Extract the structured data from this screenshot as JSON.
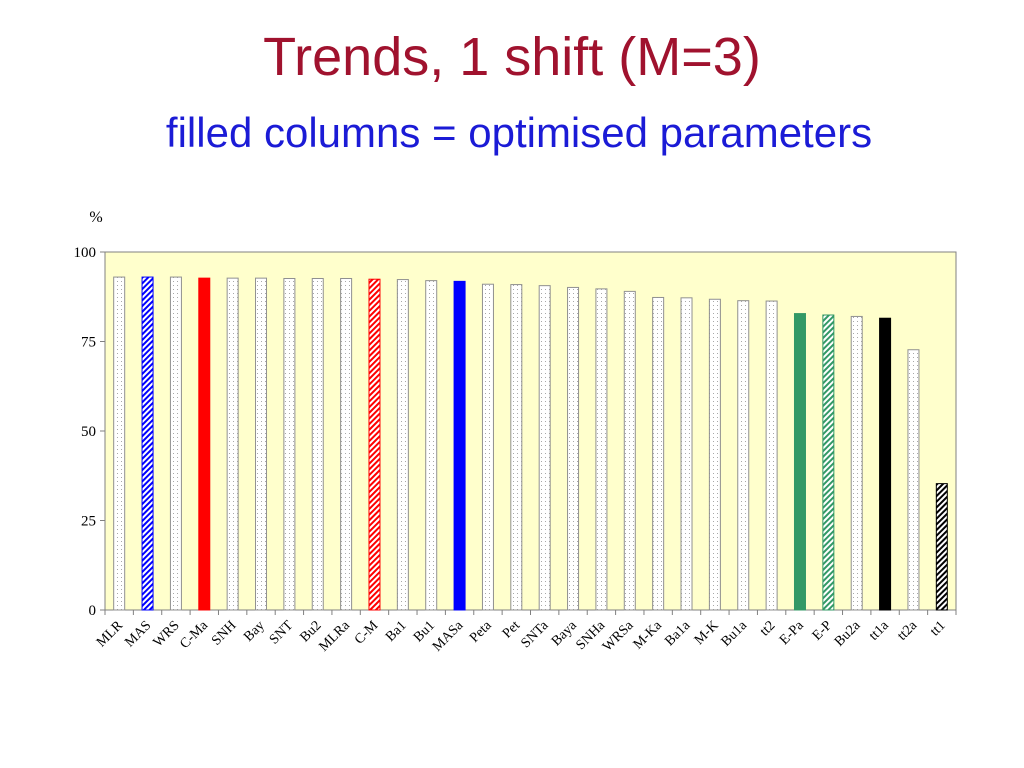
{
  "title": "Trends, 1 shift (M=3)",
  "subtitle": "filled columns = optimised parameters",
  "colors": {
    "plot_background": "#ffffcc",
    "title": "#a0122e",
    "subtitle": "#1b1bd6",
    "red": "#ff0000",
    "blue": "#0000ff",
    "green": "#339966",
    "black": "#000000",
    "dotted": "#b0b0b0"
  },
  "chart_data": {
    "type": "bar",
    "ylabel": "%",
    "ylim": [
      0,
      100
    ],
    "yticks": [
      0,
      25,
      50,
      75,
      100
    ],
    "grid": false,
    "legend": "none",
    "categories": [
      "MLR",
      "MAS",
      "WRS",
      "C-Ma",
      "SNH",
      "Bay",
      "SNT",
      "Bu2",
      "MLRa",
      "C-M",
      "Ba1",
      "Bu1",
      "MASa",
      "Peta",
      "Pet",
      "SNTa",
      "Baya",
      "SNHa",
      "WRSa",
      "M-Ka",
      "Ba1a",
      "M-K",
      "Bu1a",
      "tt2",
      "E-Pa",
      "E-P",
      "Bu2a",
      "tt1a",
      "tt2a",
      "tt1"
    ],
    "values": [
      93.0,
      93.0,
      93.0,
      92.7,
      92.7,
      92.7,
      92.6,
      92.6,
      92.6,
      92.4,
      92.3,
      92.0,
      91.8,
      91.0,
      90.9,
      90.6,
      90.1,
      89.7,
      89.0,
      87.3,
      87.2,
      86.8,
      86.4,
      86.3,
      82.8,
      82.4,
      82.0,
      81.5,
      72.7,
      35.3
    ],
    "styles": [
      "dots",
      "hatch-blue",
      "dots",
      "solid-red",
      "dots",
      "dots",
      "dots",
      "dots",
      "dots",
      "hatch-red",
      "dots",
      "dots",
      "solid-blue",
      "dots",
      "dots",
      "dots",
      "dots",
      "dots",
      "dots",
      "dots",
      "dots",
      "dots",
      "dots",
      "dots",
      "solid-green",
      "hatch-green",
      "dots",
      "solid-black",
      "dots",
      "hatch-black"
    ]
  }
}
